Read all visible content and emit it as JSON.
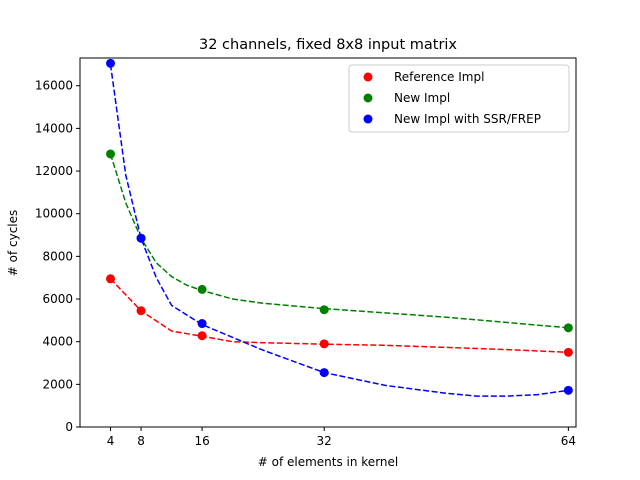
{
  "chart_data": {
    "type": "scatter",
    "title": "32 channels, fixed 8x8 input matrix",
    "xlabel": "# of elements in kernel",
    "ylabel": "# of cycles",
    "xlim": [
      0,
      65
    ],
    "ylim": [
      0,
      17300
    ],
    "xticks": [
      4,
      8,
      16,
      32,
      64
    ],
    "yticks": [
      0,
      2000,
      4000,
      6000,
      8000,
      10000,
      12000,
      14000,
      16000
    ],
    "grid": false,
    "legend_position": "top-right",
    "series": [
      {
        "name": "Reference Impl",
        "color": "#ff0000",
        "x": [
          4,
          8,
          16,
          32,
          64
        ],
        "values": [
          6950,
          5450,
          4280,
          3900,
          3500
        ],
        "fit": [
          [
            4,
            6950
          ],
          [
            8,
            5450
          ],
          [
            12,
            4500
          ],
          [
            16,
            4250
          ],
          [
            20,
            4000
          ],
          [
            24,
            3950
          ],
          [
            32,
            3880
          ],
          [
            40,
            3830
          ],
          [
            48,
            3730
          ],
          [
            56,
            3630
          ],
          [
            64,
            3500
          ]
        ]
      },
      {
        "name": "New Impl",
        "color": "#008000",
        "x": [
          4,
          8,
          16,
          32,
          64
        ],
        "values": [
          12800,
          8850,
          6450,
          5500,
          4650
        ],
        "fit": [
          [
            4,
            12800
          ],
          [
            6,
            10500
          ],
          [
            8,
            8850
          ],
          [
            10,
            7700
          ],
          [
            12,
            7050
          ],
          [
            14,
            6650
          ],
          [
            16,
            6400
          ],
          [
            20,
            6000
          ],
          [
            24,
            5800
          ],
          [
            32,
            5550
          ],
          [
            40,
            5350
          ],
          [
            48,
            5150
          ],
          [
            56,
            4900
          ],
          [
            64,
            4650
          ]
        ]
      },
      {
        "name": "New Impl with SSR/FREP",
        "color": "#0000ff",
        "x": [
          4,
          8,
          16,
          32,
          64
        ],
        "values": [
          17050,
          8850,
          4850,
          2550,
          1720
        ],
        "fit": [
          [
            4,
            17000
          ],
          [
            6,
            11800
          ],
          [
            8,
            8850
          ],
          [
            10,
            7000
          ],
          [
            12,
            5700
          ],
          [
            16,
            4800
          ],
          [
            24,
            3600
          ],
          [
            32,
            2550
          ],
          [
            40,
            1950
          ],
          [
            48,
            1580
          ],
          [
            52,
            1450
          ],
          [
            56,
            1450
          ],
          [
            60,
            1520
          ],
          [
            64,
            1720
          ]
        ]
      }
    ]
  }
}
